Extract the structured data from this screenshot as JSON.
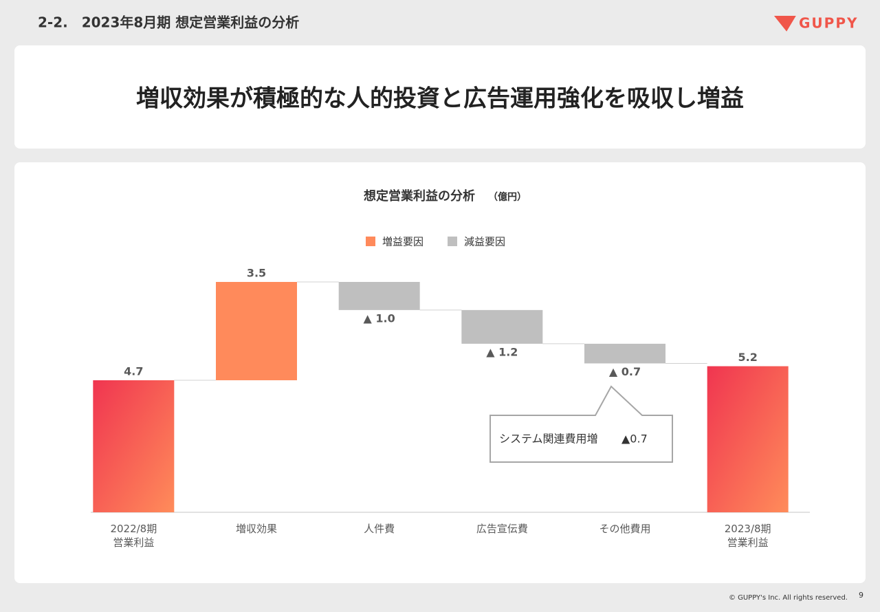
{
  "header": {
    "title": "2-2.　2023年8月期 想定営業利益の分析",
    "logo": "GUPPY"
  },
  "headline": "増収効果が積極的な人的投資と広告運用強化を吸収し増益",
  "chart_data": {
    "type": "waterfall",
    "title": "想定営業利益の分析",
    "unit": "（億円）",
    "categories": [
      "2022/8期\n営業利益",
      "増収効果",
      "人件費",
      "広告宣伝費",
      "その他費用",
      "2023/8期\n営業利益"
    ],
    "measures": [
      "absolute",
      "relative",
      "relative",
      "relative",
      "relative",
      "absolute"
    ],
    "values": [
      4.7,
      3.5,
      -1.0,
      -1.2,
      -0.7,
      5.2
    ],
    "value_labels": [
      "4.7",
      "3.5",
      "▲ 1.0",
      "▲ 1.2",
      "▲ 0.7",
      "5.2"
    ],
    "legend": [
      {
        "name": "増益要因",
        "color": "#ff8a5b"
      },
      {
        "name": "減益要因",
        "color": "#bfbfbf"
      }
    ],
    "increase_color": "#ff8a5b",
    "decrease_color": "#bfbfbf",
    "total_colors": [
      "#f03550",
      "#ff8c5a"
    ],
    "annotation": {
      "text": "システム関連費用増",
      "value": "▲0.7"
    }
  },
  "footer": {
    "copyright": "© GUPPY's Inc. All rights reserved.",
    "page": "9"
  }
}
